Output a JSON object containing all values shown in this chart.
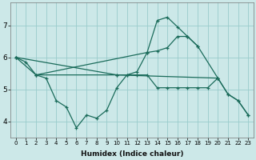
{
  "xlabel": "Humidex (Indice chaleur)",
  "bg_color": "#cce8e8",
  "grid_color": "#99cccc",
  "line_color": "#1a6b5a",
  "xlim": [
    -0.5,
    23.5
  ],
  "ylim": [
    3.5,
    7.7
  ],
  "xticks": [
    0,
    1,
    2,
    3,
    4,
    5,
    6,
    7,
    8,
    9,
    10,
    11,
    12,
    13,
    14,
    15,
    16,
    17,
    18,
    19,
    20,
    21,
    22,
    23
  ],
  "yticks": [
    4,
    5,
    6,
    7
  ],
  "line1_x": [
    0,
    1,
    2,
    3,
    4,
    5,
    6,
    7,
    8,
    9,
    10,
    11,
    12,
    13,
    14,
    15,
    16,
    17,
    18
  ],
  "line1_y": [
    6.0,
    5.85,
    5.45,
    5.35,
    4.65,
    4.45,
    3.8,
    4.2,
    4.1,
    4.35,
    5.05,
    5.45,
    5.55,
    6.15,
    7.15,
    7.25,
    6.95,
    6.65,
    6.35
  ],
  "line2_x": [
    0,
    2,
    13,
    14,
    15,
    16,
    17,
    18,
    20
  ],
  "line2_y": [
    6.0,
    5.45,
    6.15,
    6.2,
    6.3,
    6.65,
    6.65,
    6.35,
    5.35
  ],
  "line3_x": [
    2,
    10,
    11,
    12,
    13,
    14,
    15,
    16,
    17,
    18,
    19,
    20,
    21,
    22,
    23
  ],
  "line3_y": [
    5.45,
    5.45,
    5.45,
    5.45,
    5.45,
    5.05,
    5.05,
    5.05,
    5.05,
    5.05,
    5.05,
    5.35,
    4.85,
    4.65,
    4.2
  ],
  "line4_x": [
    0,
    10,
    20,
    21,
    22,
    23
  ],
  "line4_y": [
    6.0,
    5.45,
    5.35,
    4.85,
    4.65,
    4.2
  ]
}
